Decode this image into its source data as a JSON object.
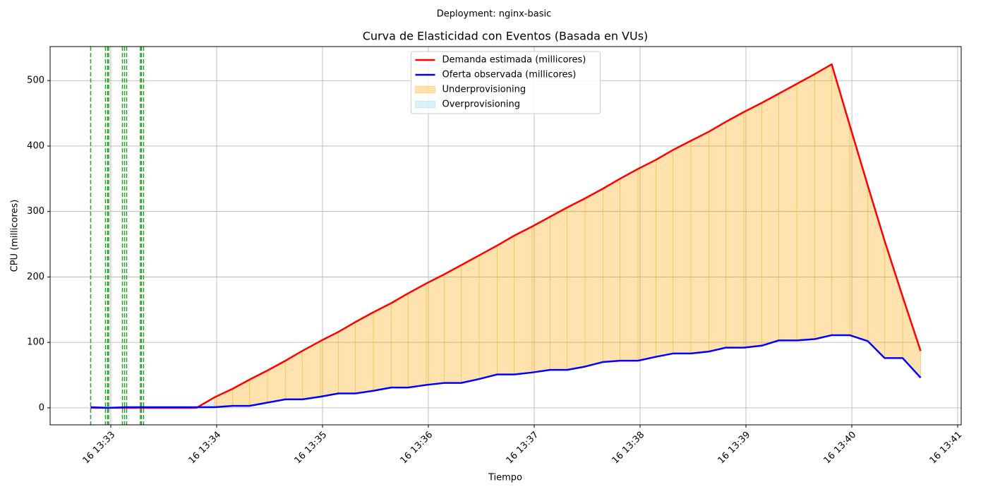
{
  "chart_data": {
    "type": "line",
    "suptitle": "Deployment: nginx-basic",
    "title": "Curva de Elasticidad con Eventos (Basada en VUs)",
    "xlabel": "Tiempo",
    "ylabel": "CPU (millicores)",
    "x": [
      812.81,
      812.98,
      813.15,
      813.31,
      813.48,
      813.65,
      813.81,
      813.98,
      814.15,
      814.31,
      814.48,
      814.65,
      814.81,
      814.98,
      815.15,
      815.31,
      815.48,
      815.65,
      815.81,
      815.98,
      816.15,
      816.31,
      816.48,
      816.65,
      816.81,
      816.98,
      817.15,
      817.31,
      817.48,
      817.65,
      817.81,
      817.98,
      818.15,
      818.31,
      818.48,
      818.65,
      818.81,
      818.98,
      819.15,
      819.31,
      819.48,
      819.65,
      819.81,
      819.98,
      820.15,
      820.31,
      820.48,
      820.65
    ],
    "series": [
      {
        "name": "Demanda estimada (millicores)",
        "color": "#ff0000",
        "values": [
          0,
          0,
          0,
          0,
          0,
          0,
          0,
          16,
          29,
          43,
          57,
          72,
          87,
          102,
          116,
          131,
          146,
          160,
          175,
          190,
          204,
          218,
          233,
          248,
          263,
          277,
          292,
          306,
          320,
          335,
          350,
          365,
          379,
          394,
          408,
          422,
          437,
          452,
          466,
          480,
          495,
          510,
          525,
          432,
          340,
          255,
          170,
          87
        ]
      },
      {
        "name": "Oferta observada (millicores)",
        "color": "#0000ff",
        "values": [
          1,
          0,
          1,
          1,
          1,
          1,
          1,
          1,
          3,
          3,
          8,
          13,
          13,
          17,
          22,
          22,
          26,
          31,
          31,
          35,
          38,
          38,
          44,
          51,
          51,
          54,
          58,
          58,
          63,
          70,
          72,
          72,
          78,
          83,
          83,
          86,
          92,
          92,
          95,
          103,
          103,
          105,
          111,
          111,
          102,
          76,
          76,
          46
        ]
      }
    ],
    "fills": [
      {
        "name": "Underprovisioning",
        "color": "#ffa500"
      },
      {
        "name": "Overprovisioning",
        "color": "#87ceeb"
      }
    ],
    "events": {
      "color": "#2ca02c",
      "x": [
        812.81,
        812.95,
        812.97,
        812.98,
        813.11,
        813.13,
        813.15,
        813.28,
        813.29,
        813.31
      ]
    },
    "xlim": [
      812.427,
      821.033
    ],
    "ylim": [
      -26,
      552
    ],
    "yticks": [
      0,
      100,
      200,
      300,
      400,
      500
    ],
    "xticks": [
      {
        "value": 813,
        "label": "16 13:33"
      },
      {
        "value": 814,
        "label": "16 13:34"
      },
      {
        "value": 815,
        "label": "16 13:35"
      },
      {
        "value": 816,
        "label": "16 13:36"
      },
      {
        "value": 817,
        "label": "16 13:37"
      },
      {
        "value": 818,
        "label": "16 13:38"
      },
      {
        "value": 819,
        "label": "16 13:39"
      },
      {
        "value": 820,
        "label": "16 13:40"
      },
      {
        "value": 821,
        "label": "16 13:41"
      }
    ],
    "grid": true,
    "legend": "upper center"
  }
}
